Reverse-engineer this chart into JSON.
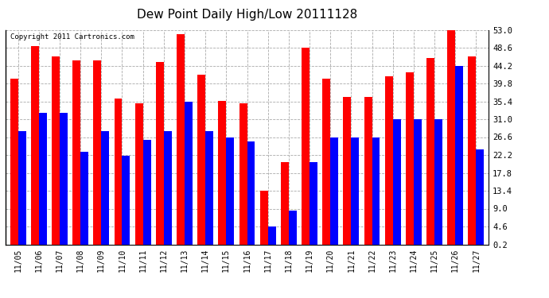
{
  "title": "Dew Point Daily High/Low 20111128",
  "copyright": "Copyright 2011 Cartronics.com",
  "dates": [
    "11/05",
    "11/06",
    "11/07",
    "11/08",
    "11/09",
    "11/10",
    "11/11",
    "11/12",
    "11/13",
    "11/14",
    "11/15",
    "11/16",
    "11/17",
    "11/18",
    "11/19",
    "11/20",
    "11/21",
    "11/22",
    "11/23",
    "11/24",
    "11/25",
    "11/26",
    "11/27"
  ],
  "high": [
    41.0,
    49.0,
    46.5,
    45.5,
    45.5,
    36.0,
    35.0,
    45.0,
    52.0,
    42.0,
    35.5,
    35.0,
    13.4,
    20.5,
    48.6,
    41.0,
    36.5,
    36.5,
    41.5,
    42.5,
    46.0,
    53.0,
    46.5
  ],
  "low": [
    28.0,
    32.5,
    32.5,
    23.0,
    28.0,
    22.0,
    26.0,
    28.0,
    35.4,
    28.0,
    26.5,
    25.5,
    4.6,
    8.5,
    20.5,
    26.6,
    26.6,
    26.6,
    31.0,
    31.0,
    31.0,
    44.2,
    23.5
  ],
  "high_color": "#ff0000",
  "low_color": "#0000ff",
  "bg_color": "#ffffff",
  "grid_color": "#aaaaaa",
  "yticks": [
    0.2,
    4.6,
    9.0,
    13.4,
    17.8,
    22.2,
    26.6,
    31.0,
    35.4,
    39.8,
    44.2,
    48.6,
    53.0
  ],
  "ylim": [
    0.2,
    53.0
  ],
  "figwidth": 6.9,
  "figheight": 3.75,
  "dpi": 100
}
